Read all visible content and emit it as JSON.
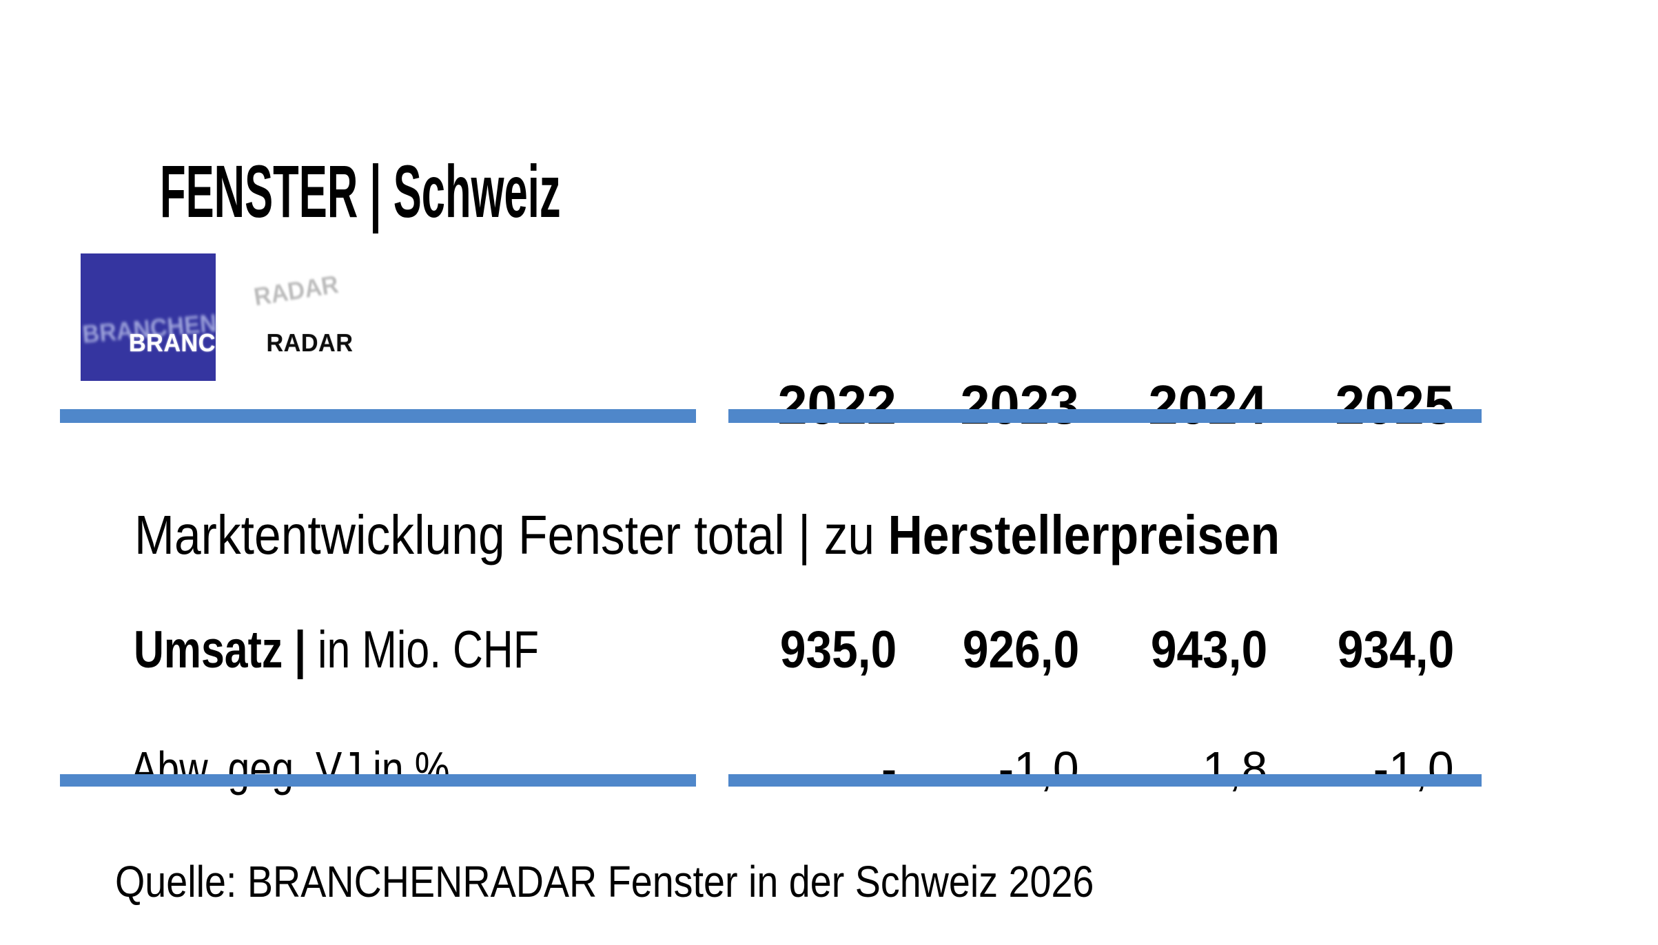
{
  "title": "FENSTER | Schweiz",
  "logo": {
    "brand_left": "BRANCHEN",
    "brand_right": "RADAR"
  },
  "table": {
    "years": [
      "2022",
      "2023",
      "2024",
      "2025"
    ],
    "section_title_regular": "Marktentwicklung Fenster total | zu ",
    "section_title_bold": "Herstellerpreisen",
    "rows": [
      {
        "label_bold": "Umsatz | ",
        "label_regular": "in Mio. CHF",
        "values": [
          "935,0",
          "926,0",
          "943,0",
          "934,0"
        ]
      },
      {
        "label_bold": "",
        "label_regular": "Abw. geg. VJ in %",
        "values": [
          "-",
          "-1,0",
          "1,8",
          "-1,0"
        ]
      }
    ]
  },
  "footer_source": "Quelle: BRANCHENRADAR Fenster in der Schweiz 2026",
  "colors": {
    "accent_bar": "#4F87CA",
    "logo_square": "#3535A0"
  }
}
